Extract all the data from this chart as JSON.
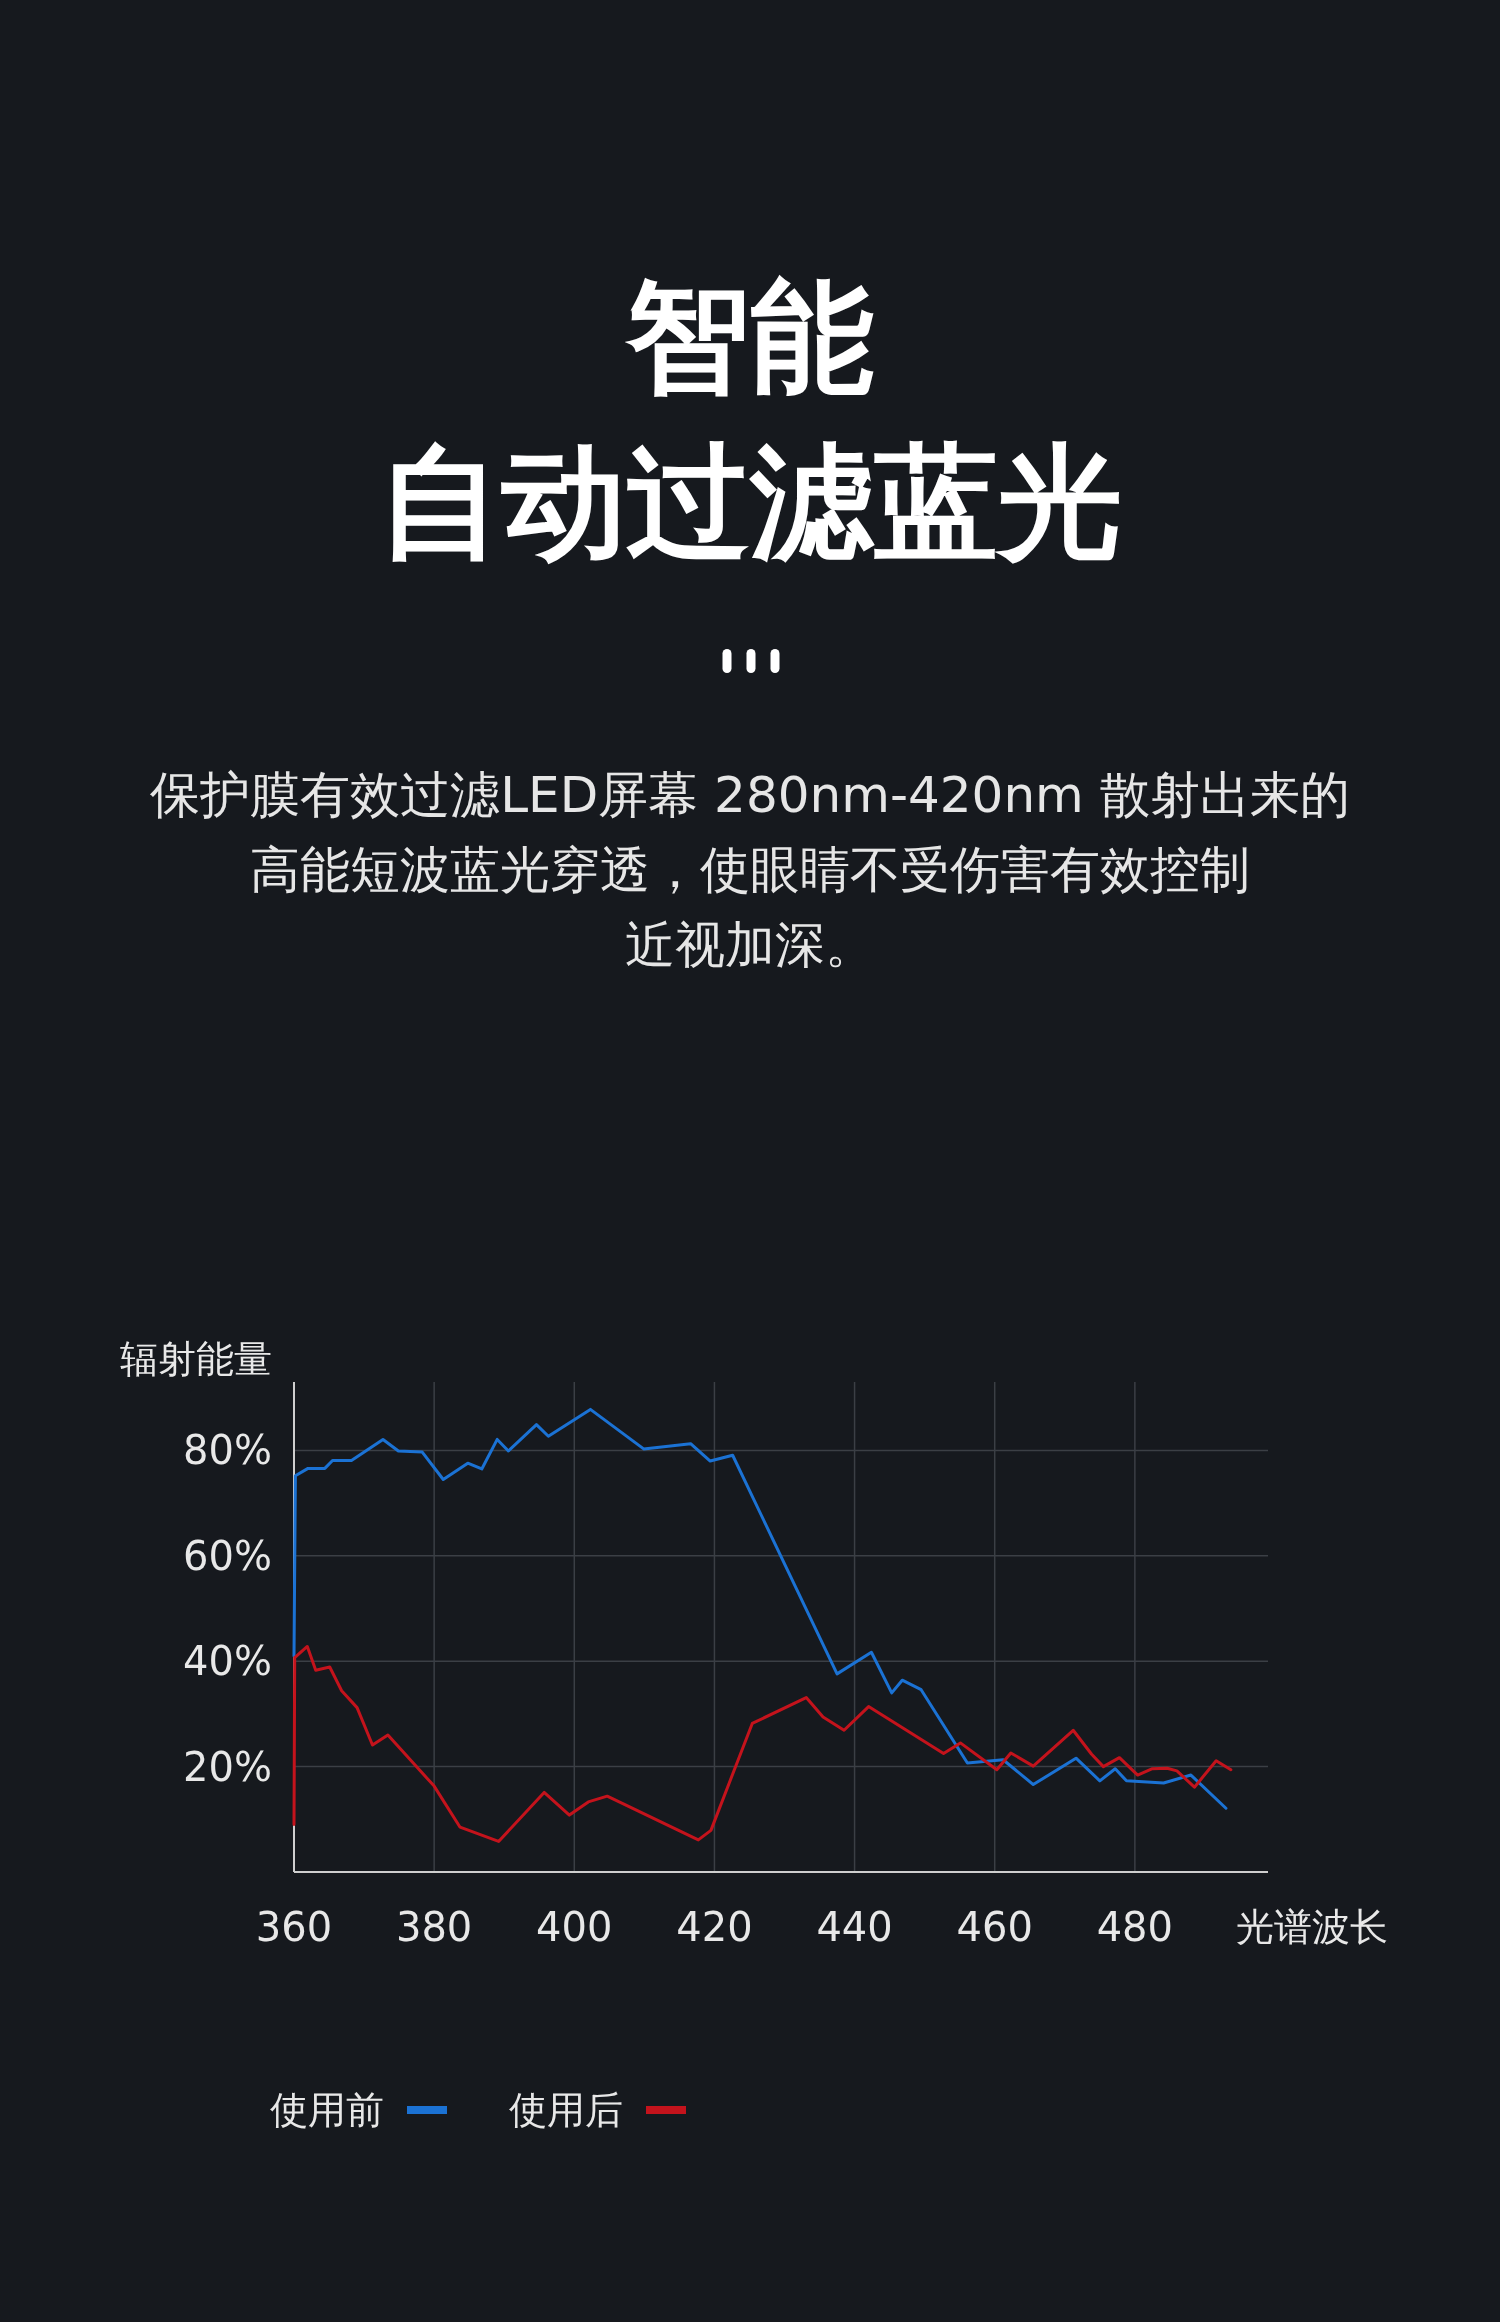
{
  "chart_data": {
    "type": "line",
    "title": "智能自动过滤蓝光",
    "subtitle": "保护膜有效过滤LED屏幕 280nm-420nm 散射出来的高能短波蓝光穿透，使眼睛不受伤害有效控制近视加深。",
    "xlabel": "光谱波长",
    "ylabel": "辐射能量",
    "xlim": [
      360,
      499
    ],
    "ylim": [
      0,
      93
    ],
    "xticks": [
      360,
      380,
      400,
      420,
      440,
      460,
      480
    ],
    "yticks": [
      {
        "value": 20,
        "label": "20%"
      },
      {
        "value": 40,
        "label": "40%"
      },
      {
        "value": 60,
        "label": "60%"
      },
      {
        "value": 80,
        "label": "80%"
      }
    ],
    "grid": true,
    "legend": "bottom",
    "series": [
      {
        "name": "使用前",
        "color": "#1b72d4",
        "x": [
          360,
          360.2,
          362,
          364.4,
          365.5,
          368.2,
          372.7,
          374.9,
          378.3,
          381.3,
          384.8,
          386.8,
          389,
          390.6,
          394.6,
          396.3,
          402.3,
          409.9,
          416.6,
          419.4,
          422.6,
          437.5,
          442.4,
          445.3,
          446.8,
          449.5,
          456.1,
          461.2,
          465.5,
          471.6,
          475,
          477.2,
          478.8,
          484.1,
          488,
          493
        ],
        "values": [
          41,
          75.2,
          76.6,
          76.6,
          78.1,
          78.1,
          82.1,
          79.9,
          79.7,
          74.5,
          77.6,
          76.5,
          82.1,
          79.9,
          84.9,
          82.7,
          87.8,
          80.3,
          81.3,
          78,
          79.1,
          37.6,
          41.7,
          34,
          36.4,
          34.6,
          20.7,
          21.3,
          16.6,
          21.6,
          17.3,
          19.6,
          17.3,
          16.9,
          18.4,
          12.1
        ]
      },
      {
        "name": "使用后",
        "color": "#c4131c",
        "x": [
          360,
          360.1,
          361.9,
          363.1,
          365.1,
          366.8,
          369,
          371.2,
          373.4,
          380,
          383.7,
          389.2,
          395.7,
          399.3,
          402,
          404.7,
          417.7,
          419.5,
          425.4,
          433.1,
          435.5,
          438.5,
          442,
          452.7,
          455.1,
          460.3,
          462.3,
          465.5,
          471.2,
          473.8,
          475.5,
          477.8,
          480.4,
          482.5,
          484.6,
          486,
          488.5,
          491.6,
          493.7
        ],
        "values": [
          9,
          40.7,
          42.8,
          38.3,
          38.9,
          34.4,
          31.2,
          24.1,
          26,
          16.3,
          8.5,
          5.8,
          15.1,
          10.8,
          13.3,
          14.4,
          6.1,
          7.9,
          28.2,
          33.1,
          29.4,
          26.9,
          31.4,
          22.5,
          24.5,
          19.4,
          22.6,
          20.1,
          26.9,
          22.4,
          20,
          21.7,
          18.4,
          19.6,
          19.7,
          19.2,
          16.1,
          21.1,
          19.4
        ]
      }
    ]
  }
}
